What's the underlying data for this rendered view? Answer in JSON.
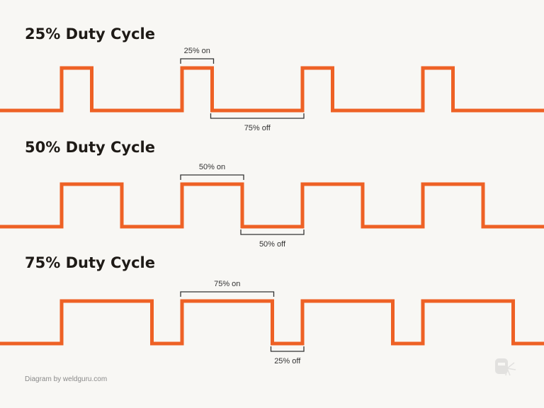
{
  "colors": {
    "wave": "#ee6125",
    "background": "#f8f7f4",
    "title": "#1e1a16",
    "bracket": "#333333"
  },
  "diagrams": [
    {
      "title": "25% Duty Cycle",
      "duty": 0.25,
      "on_label": "25% on",
      "off_label": "75% off"
    },
    {
      "title": "50% Duty Cycle",
      "duty": 0.5,
      "on_label": "50% on",
      "off_label": "50% off"
    },
    {
      "title": "75% Duty Cycle",
      "duty": 0.75,
      "on_label": "75% on",
      "off_label": "25% off"
    }
  ],
  "footer": "Diagram by weldguru.com",
  "logo": {
    "icon": "welding-helmet-icon",
    "text": ""
  }
}
